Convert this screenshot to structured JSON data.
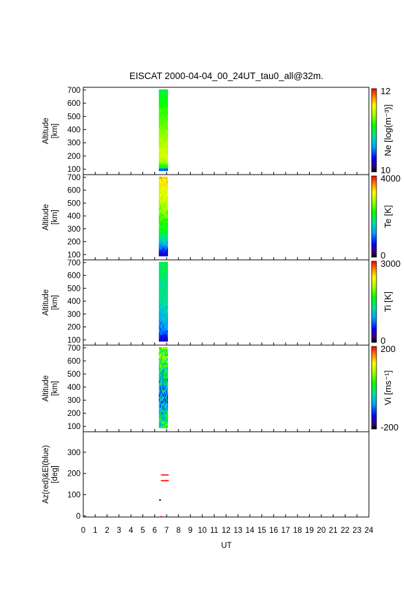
{
  "chart_data": {
    "type": "heatmap",
    "title": "EISCAT 2000-04-04_00_24UT_tau0_all@32m.",
    "xlabel": "UT",
    "xlim": [
      0,
      24
    ],
    "x_ticks": [
      "0",
      "1",
      "2",
      "3",
      "4",
      "5",
      "6",
      "7",
      "8",
      "9",
      "10",
      "11",
      "12",
      "13",
      "14",
      "15",
      "16",
      "17",
      "18",
      "19",
      "20",
      "21",
      "22",
      "23",
      "24"
    ],
    "data_time_range_ut": [
      6.35,
      7.1
    ],
    "panels": [
      {
        "id": "ne",
        "ylabel": [
          "Altitude",
          "[km]"
        ],
        "ylim": [
          80,
          710
        ],
        "y_ticks": [
          100,
          200,
          300,
          400,
          500,
          600,
          700
        ],
        "colorbar_label": "Ne [log(m⁻³)]",
        "colorbar_range": [
          10,
          12
        ],
        "colorbar_ticks": [
          "12",
          "10"
        ],
        "altitude_profile": [
          [
            90,
            10.2
          ],
          [
            110,
            11.0
          ],
          [
            150,
            11.35
          ],
          [
            200,
            11.5
          ],
          [
            250,
            11.45
          ],
          [
            300,
            11.4
          ],
          [
            400,
            11.3
          ],
          [
            500,
            11.2
          ],
          [
            600,
            11.1
          ],
          [
            700,
            11.0
          ]
        ]
      },
      {
        "id": "te",
        "ylabel": [
          "Altitude",
          "[km]"
        ],
        "ylim": [
          80,
          710
        ],
        "y_ticks": [
          100,
          200,
          300,
          400,
          500,
          600,
          700
        ],
        "colorbar_label": "Te [K]",
        "colorbar_range": [
          0,
          4000
        ],
        "colorbar_ticks": [
          "4000",
          "0"
        ],
        "altitude_profile": [
          [
            90,
            300
          ],
          [
            120,
            700
          ],
          [
            160,
            1100
          ],
          [
            200,
            1500
          ],
          [
            250,
            1900
          ],
          [
            300,
            2200
          ],
          [
            400,
            2500
          ],
          [
            500,
            2800
          ],
          [
            600,
            3100
          ],
          [
            700,
            3300
          ]
        ]
      },
      {
        "id": "ti",
        "ylabel": [
          "Altitude",
          "[km]"
        ],
        "ylim": [
          80,
          710
        ],
        "y_ticks": [
          100,
          200,
          300,
          400,
          500,
          600,
          700
        ],
        "colorbar_label": "Ti [K]",
        "colorbar_range": [
          0,
          3000
        ],
        "colorbar_ticks": [
          "3000",
          "0"
        ],
        "altitude_profile": [
          [
            90,
            250
          ],
          [
            150,
            700
          ],
          [
            200,
            900
          ],
          [
            300,
            1100
          ],
          [
            400,
            1250
          ],
          [
            500,
            1350
          ],
          [
            600,
            1400
          ],
          [
            700,
            1450
          ]
        ]
      },
      {
        "id": "vi",
        "ylabel": [
          "Altitude",
          "[km]"
        ],
        "ylim": [
          80,
          710
        ],
        "y_ticks": [
          100,
          200,
          300,
          400,
          500,
          600,
          700
        ],
        "colorbar_label": "Vi [ms⁻¹]",
        "colorbar_range": [
          -200,
          200
        ],
        "colorbar_ticks": [
          "200",
          "-200"
        ],
        "altitude_profile": [
          [
            90,
            0
          ],
          [
            200,
            -40
          ],
          [
            300,
            -80
          ],
          [
            400,
            -60
          ],
          [
            500,
            -30
          ],
          [
            600,
            20
          ],
          [
            700,
            60
          ]
        ]
      },
      {
        "id": "azel",
        "ylabel": [
          "Az(red)&El(blue)",
          "[deg]"
        ],
        "ylim": [
          -5,
          390
        ],
        "y_ticks": [
          0,
          100,
          200,
          300
        ],
        "series": [
          {
            "color": "#ff0000",
            "points": [
              [
                6.6,
                193
              ],
              [
                6.7,
                193
              ],
              [
                6.8,
                193
              ],
              [
                6.9,
                193
              ],
              [
                7.0,
                193
              ],
              [
                7.1,
                193
              ],
              [
                6.6,
                166
              ],
              [
                6.7,
                166
              ],
              [
                6.8,
                166
              ],
              [
                6.9,
                166
              ],
              [
                7.0,
                166
              ],
              [
                7.1,
                166
              ],
              [
                6.55,
                -3
              ]
            ]
          },
          {
            "color": "#000000",
            "points": [
              [
                6.45,
                75
              ]
            ]
          }
        ]
      }
    ]
  }
}
